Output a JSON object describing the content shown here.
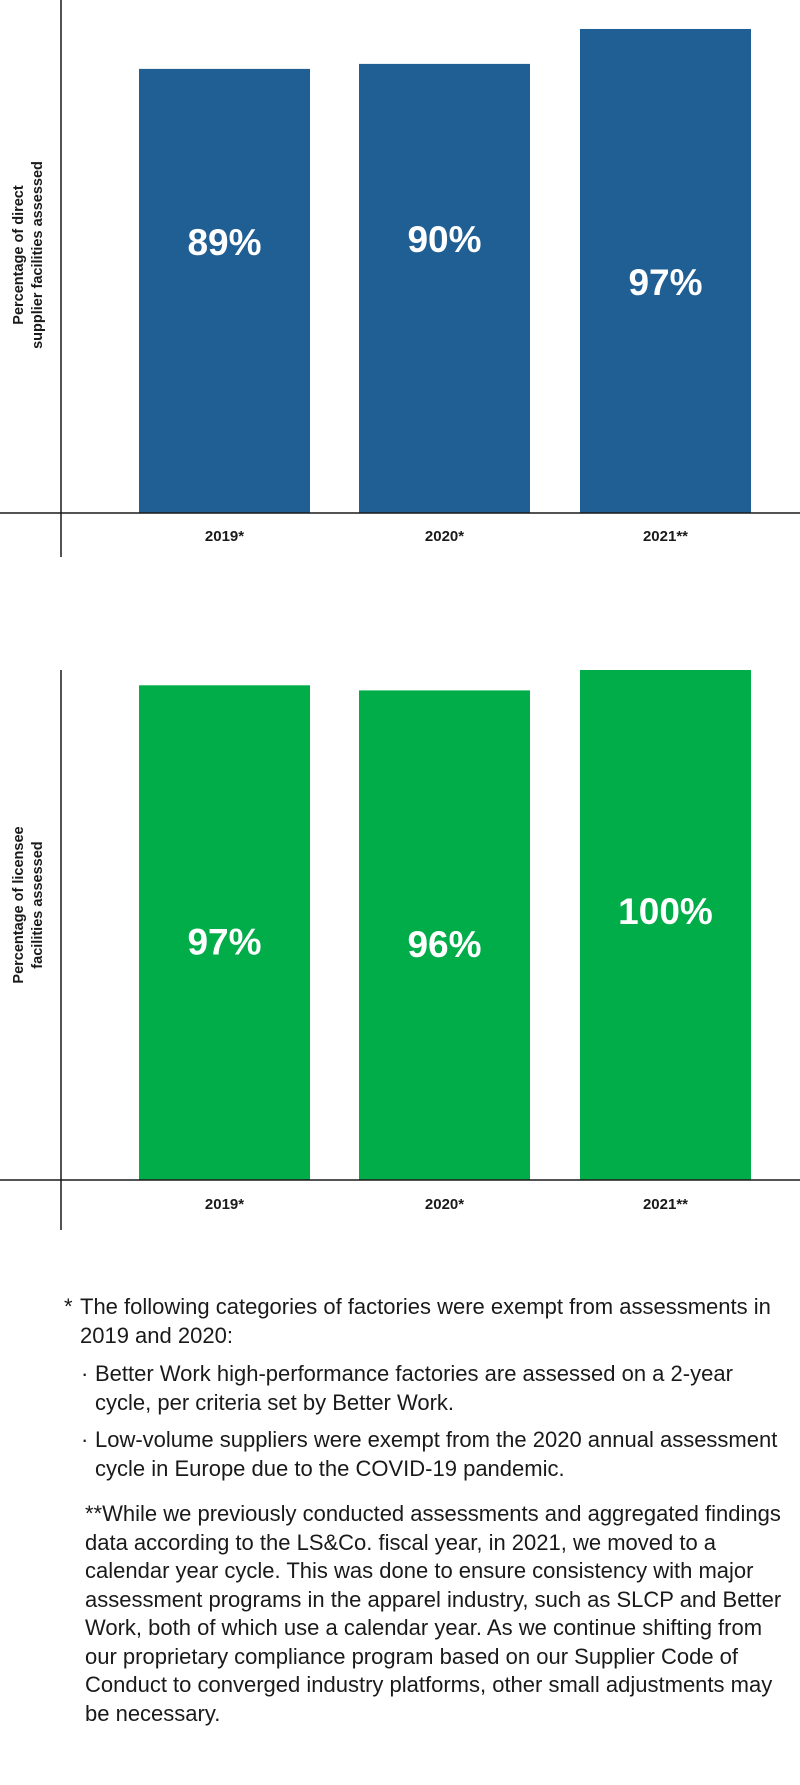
{
  "chart_data": [
    {
      "type": "bar",
      "categories": [
        "2019*",
        "2020*",
        "2021**"
      ],
      "values": [
        89,
        90,
        97
      ],
      "value_labels": [
        "89%",
        "90%",
        "97%"
      ],
      "ylabel": "Percentage of direct supplier facilities assessed",
      "ylim": [
        0,
        100
      ],
      "color": "#205f94",
      "grid": false,
      "legend": "none"
    },
    {
      "type": "bar",
      "categories": [
        "2019*",
        "2020*",
        "2021**"
      ],
      "values": [
        97,
        96,
        100
      ],
      "value_labels": [
        "97%",
        "96%",
        "100%"
      ],
      "ylabel": "Percentage of licensee facilities assessed",
      "ylim": [
        0,
        100
      ],
      "color": "#00ad48",
      "grid": false,
      "legend": "none"
    }
  ],
  "charts": [
    {
      "ylabel_lines": [
        "Percentage of direct",
        "supplier facilities assessed"
      ]
    },
    {
      "ylabel_lines": [
        "Percentage of licensee",
        "facilities assessed"
      ]
    }
  ],
  "footnotes": {
    "note1": {
      "mark": "*",
      "text": "The following categories of factories were exempt from assessments in 2019 and 2020:",
      "bullets": [
        "Better Work high-performance factories are assessed on a 2-year cycle, per criteria set by Better Work.",
        "Low-volume suppliers were exempt from the 2020 annual assessment cycle in Europe due to the COVID-19 pandemic."
      ]
    },
    "note2": {
      "mark": "**",
      "text": "While we previously conducted assessments and aggregated findings data according to the LS&Co. fiscal year, in 2021, we moved to a calendar year cycle. This was done to ensure consistency with major assessment programs in the apparel industry, such as SLCP and Better Work, both of which use a calendar year. As we continue shifting from our proprietary compliance program based on our Supplier Code of Conduct to converged industry platforms, other small adjustments may be necessary."
    }
  }
}
